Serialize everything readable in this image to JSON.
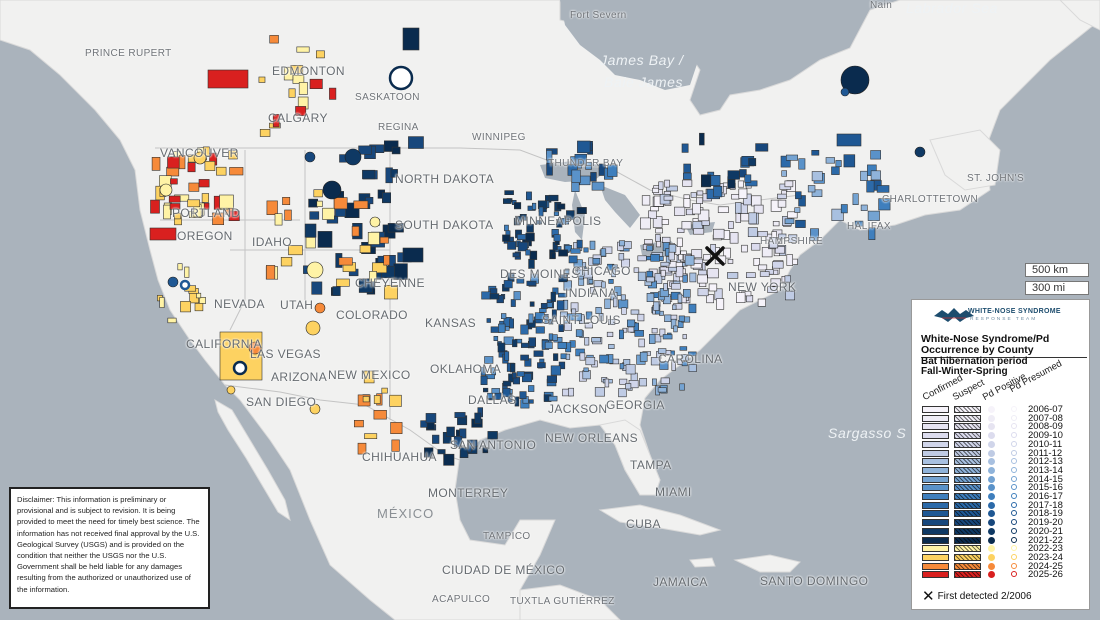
{
  "map": {
    "cities": [
      {
        "name": "PRINCE RUPERT",
        "big": false
      },
      {
        "name": "EDMONTON",
        "big": true
      },
      {
        "name": "SASKATOON",
        "big": false
      },
      {
        "name": "CALGARY",
        "big": true
      },
      {
        "name": "REGINA",
        "big": false
      },
      {
        "name": "WINNIPEG",
        "big": false
      },
      {
        "name": "VANCOUVER",
        "big": true
      },
      {
        "name": "THUNDER BAY",
        "big": false
      },
      {
        "name": "PORTLAND",
        "big": true
      },
      {
        "name": "NORTH DAKOTA",
        "big": true
      },
      {
        "name": "SOUTH DAKOTA",
        "big": true
      },
      {
        "name": "OREGON",
        "big": true
      },
      {
        "name": "IDAHO",
        "big": true
      },
      {
        "name": "MINNEAPOLIS",
        "big": true
      },
      {
        "name": "DES MOINES",
        "big": true
      },
      {
        "name": "CHICAGO",
        "big": true
      },
      {
        "name": "CHEYENNE",
        "big": true
      },
      {
        "name": "NEVADA",
        "big": true
      },
      {
        "name": "UTAH",
        "big": true
      },
      {
        "name": "COLORADO",
        "big": true
      },
      {
        "name": "KANSAS",
        "big": true
      },
      {
        "name": "INDIANA",
        "big": true
      },
      {
        "name": "SAINT LOUIS",
        "big": true
      },
      {
        "name": "NEW YORK",
        "big": true
      },
      {
        "name": "CALIFORNIA",
        "big": true
      },
      {
        "name": "LAS VEGAS",
        "big": true
      },
      {
        "name": "ARIZONA",
        "big": true
      },
      {
        "name": "NEW MEXICO",
        "big": true
      },
      {
        "name": "OKLAHOMA",
        "big": true
      },
      {
        "name": "SAN DIEGO",
        "big": true
      },
      {
        "name": "DALLAS",
        "big": true
      },
      {
        "name": "JACKSON",
        "big": true
      },
      {
        "name": "GEORGIA",
        "big": true
      },
      {
        "name": "CAROLINA",
        "big": true
      },
      {
        "name": "SAN ANTONIO",
        "big": true
      },
      {
        "name": "NEW ORLEANS",
        "big": true
      },
      {
        "name": "CHIHUAHUA",
        "big": true
      },
      {
        "name": "TAMPA",
        "big": true
      },
      {
        "name": "MIAMI",
        "big": true
      },
      {
        "name": "MONTERREY",
        "big": true
      },
      {
        "name": "CUBA",
        "big": true
      },
      {
        "name": "TAMPICO",
        "big": false
      },
      {
        "name": "CIUDAD DE MÉXICO",
        "big": true
      },
      {
        "name": "JAMAICA",
        "big": true
      },
      {
        "name": "SANTO DOMINGO",
        "big": true
      },
      {
        "name": "ACAPULCO",
        "big": false
      },
      {
        "name": "TUXTLA GUTIÉRREZ",
        "big": false
      },
      {
        "name": "Fort Severn",
        "big": false
      },
      {
        "name": "Nain",
        "big": false
      },
      {
        "name": "ST. JOHN'S",
        "big": false
      },
      {
        "name": "CHARLOTTETOWN",
        "big": false
      },
      {
        "name": "HALIFAX",
        "big": false
      },
      {
        "name": "HAMPSHIRE",
        "big": false
      }
    ],
    "water": [
      "James Bay /",
      "Baie James",
      "Labrador Sea",
      "Sargasso S"
    ],
    "country": "MÉXICO",
    "scale": {
      "km": "500 km",
      "mi": "300 mi"
    }
  },
  "disclaimer": "Disclaimer: This information is preliminary or provisional and is subject to revision. It is being provided to meet the need for timely best science. The information has not received final approval by the U.S. Geological Survey (USGS) and is provided on the condition that neither the USGS nor the U.S. Government shall be held liable for any damages resulting from the authorized or unauthorized use of the information.",
  "legend": {
    "logo_text": "WHITE-NOSE SYNDROME",
    "logo_sub": "RESPONSE TEAM",
    "title": "White-Nose Syndrome/Pd Occurrence by County",
    "period_line1": "Bat hibernation period",
    "period_line2": "Fall-Winter-Spring",
    "columns": [
      "Confirmed",
      "Suspect",
      "Pd Positive",
      "Pd Presumed"
    ],
    "periods": [
      {
        "label": "2006-07",
        "color": "#f6f3fa"
      },
      {
        "label": "2007-08",
        "color": "#efedf6"
      },
      {
        "label": "2008-09",
        "color": "#e6e4f1"
      },
      {
        "label": "2009-10",
        "color": "#dcdcee"
      },
      {
        "label": "2010-11",
        "color": "#d0d5ea"
      },
      {
        "label": "2011-12",
        "color": "#bfcbe4"
      },
      {
        "label": "2012-13",
        "color": "#a8c0e0"
      },
      {
        "label": "2013-14",
        "color": "#8fb3da"
      },
      {
        "label": "2014-15",
        "color": "#74a3d2"
      },
      {
        "label": "2015-16",
        "color": "#5a92c9"
      },
      {
        "label": "2016-17",
        "color": "#3f7fbd"
      },
      {
        "label": "2017-18",
        "color": "#2c6aa9"
      },
      {
        "label": "2018-19",
        "color": "#1f5894"
      },
      {
        "label": "2019-20",
        "color": "#17477c"
      },
      {
        "label": "2020-21",
        "color": "#0f3964"
      },
      {
        "label": "2021-22",
        "color": "#0a2b4e"
      },
      {
        "label": "2022-23",
        "color": "#fff3a6"
      },
      {
        "label": "2023-24",
        "color": "#fdd261"
      },
      {
        "label": "2024-25",
        "color": "#f68a3a"
      },
      {
        "label": "2025-26",
        "color": "#d9201f"
      }
    ],
    "first_detected": "First detected 2/2006"
  }
}
